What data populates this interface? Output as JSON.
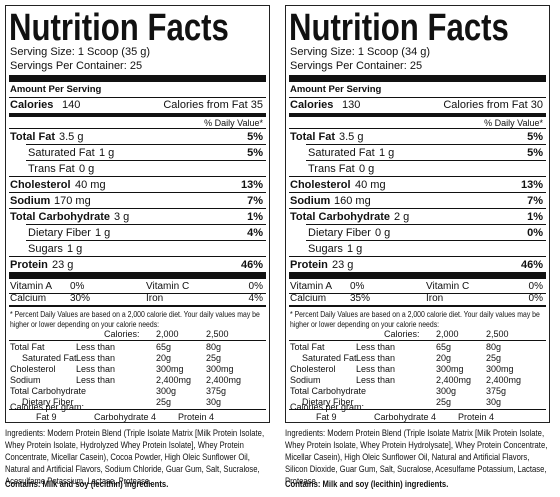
{
  "labels": [
    {
      "title": "Nutrition Facts",
      "serving_size": "Serving Size: 1 Scoop (35 g)",
      "servings": "Servings Per Container: 25",
      "amount_per_serving": "Amount Per Serving",
      "calories": {
        "label": "Calories",
        "value": "140"
      },
      "calories_fat": "Calories from Fat 35",
      "dv_header": "% Daily Value*",
      "nutrients": [
        {
          "name": "Total Fat",
          "amount": "3.5 g",
          "dv": "5%"
        },
        {
          "name": "Saturated Fat",
          "amount": "1 g",
          "dv": "5%"
        },
        {
          "name": "Trans Fat",
          "amount": "0 g"
        },
        {
          "name": "Cholesterol",
          "amount": "40 mg",
          "dv": "13%"
        },
        {
          "name": "Sodium",
          "amount": "170 mg",
          "dv": "7%"
        },
        {
          "name": "Total Carbohydrate",
          "amount": "3 g",
          "dv": "1%"
        },
        {
          "name": "Dietary Fiber",
          "amount": "1 g",
          "dv": "4%"
        },
        {
          "name": "Sugars",
          "amount": "1 g"
        },
        {
          "name": "Protein",
          "amount": "23 g",
          "dv": "46%"
        }
      ],
      "vitamins": [
        {
          "name": "Vitamin A",
          "dv": "0%"
        },
        {
          "name": "Vitamin C",
          "dv": "0%"
        },
        {
          "name": "Calcium",
          "dv": "30%"
        },
        {
          "name": "Iron",
          "dv": "4%"
        }
      ],
      "footnote": "* Percent Daily Values are based on a 2,000 calorie diet. Your daily values may be higher or lower depending on your calorie needs:",
      "dv_table": {
        "header": {
          "label": "Calories:",
          "cols": [
            "2,000",
            "2,500"
          ]
        },
        "rows": [
          [
            "Total Fat",
            "Less than",
            "65g",
            "80g"
          ],
          [
            "Saturated Fat",
            "Less than",
            "20g",
            "25g"
          ],
          [
            "Cholesterol",
            "Less than",
            "300mg",
            "300mg"
          ],
          [
            "Sodium",
            "Less than",
            "2,400mg",
            "2,400mg"
          ],
          [
            "Total Carbohydrate",
            "300g",
            "375g"
          ],
          [
            "Dietary Fiber",
            "25g",
            "30g"
          ]
        ]
      },
      "calories_per_gram": {
        "label": "Calories per gram:",
        "values": [
          "Fat 9",
          "Carbohydrate 4",
          "Protein 4"
        ]
      },
      "ingredients": "Ingredients: Modern Protein Blend (Triple Isolate Matrix [Milk Protein Isolate, Whey Protein Isolate, Hydrolyzed Whey Protein Isolate], Whey Protein Concentrate, Micellar Casein), Cocoa Powder, High Oleic Sunflower Oil, Natural and Artificial Flavors, Sodium Chloride, Guar Gum, Salt, Sucralose, Acesulfame Potassium, Lactase, Protease.",
      "contains": "Contains: Milk and soy (lecithin) ingredients."
    },
    {
      "title": "Nutrition Facts",
      "serving_size": "Serving Size: 1 Scoop (34 g)",
      "servings": "Servings Per Container: 25",
      "amount_per_serving": "Amount Per Serving",
      "calories": {
        "label": "Calories",
        "value": "130"
      },
      "calories_fat": "Calories from Fat 30",
      "dv_header": "% Daily Value*",
      "nutrients": [
        {
          "name": "Total Fat",
          "amount": "3.5 g",
          "dv": "5%"
        },
        {
          "name": "Saturated Fat",
          "amount": "1 g",
          "dv": "5%"
        },
        {
          "name": "Trans Fat",
          "amount": "0 g"
        },
        {
          "name": "Cholesterol",
          "amount": "40 mg",
          "dv": "13%"
        },
        {
          "name": "Sodium",
          "amount": "160 mg",
          "dv": "7%"
        },
        {
          "name": "Total Carbohydrate",
          "amount": "2 g",
          "dv": "1%"
        },
        {
          "name": "Dietary Fiber",
          "amount": "0 g",
          "dv": "0%"
        },
        {
          "name": "Sugars",
          "amount": "1 g"
        },
        {
          "name": "Protein",
          "amount": "23 g",
          "dv": "46%"
        }
      ],
      "vitamins": [
        {
          "name": "Vitamin A",
          "dv": "0%"
        },
        {
          "name": "Vitamin C",
          "dv": "0%"
        },
        {
          "name": "Calcium",
          "dv": "35%"
        },
        {
          "name": "Iron",
          "dv": "0%"
        }
      ],
      "footnote": "* Percent Daily Values are based on a 2,000 calorie diet. Your daily values may be higher or lower depending on your calorie needs:",
      "dv_table": {
        "header": {
          "label": "Calories:",
          "cols": [
            "2,000",
            "2,500"
          ]
        },
        "rows": [
          [
            "Total Fat",
            "Less than",
            "65g",
            "80g"
          ],
          [
            "Saturated Fat",
            "Less than",
            "20g",
            "25g"
          ],
          [
            "Cholesterol",
            "Less than",
            "300mg",
            "300mg"
          ],
          [
            "Sodium",
            "Less than",
            "2,400mg",
            "2,400mg"
          ],
          [
            "Total Carbohydrate",
            "300g",
            "375g"
          ],
          [
            "Dietary Fiber",
            "25g",
            "30g"
          ]
        ]
      },
      "calories_per_gram": {
        "label": "Calories per gram:",
        "values": [
          "Fat 9",
          "Carbohydrate 4",
          "Protein 4"
        ]
      },
      "ingredients": "Ingredients: Modern Protein Blend (Triple Isolate Matrix [Milk Protein Isolate, Whey Protein Isolate, Whey Protein Hydrolysate], Whey Protein Concentrate, Micellar Casein), High Oleic Sunflower Oil, Natural and Artificial Flavors, Silicon Dioxide, Guar Gum, Salt, Sucralose, Acesulfame Potassium, Lactase, Protease.",
      "contains": "Contains: Milk and soy (lecithin) ingredients."
    }
  ]
}
